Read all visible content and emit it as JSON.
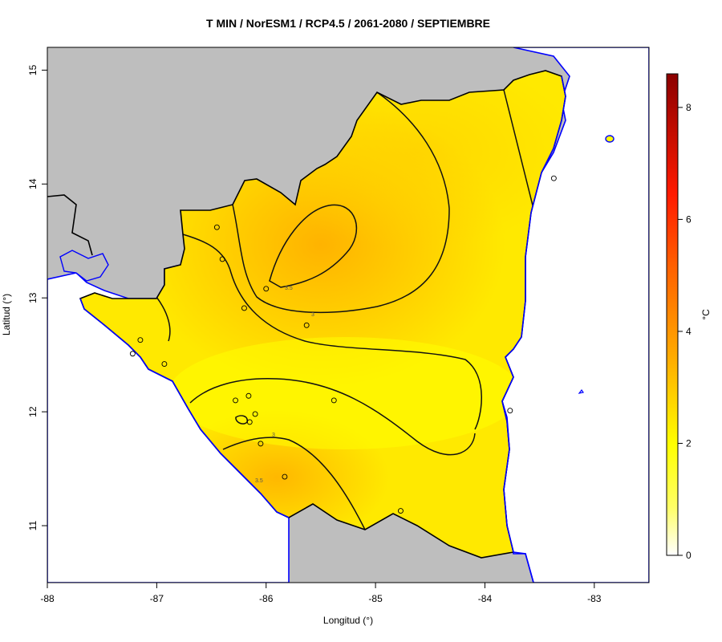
{
  "title": "T MIN / NorESM1 / RCP4.5 / 2061-2080 / SEPTIEMBRE",
  "xlabel": "Longitud (°)",
  "ylabel": "Latitud (°)",
  "unit": "°C",
  "colors": {
    "land_background": "#bebebe",
    "coastline": "#0000ff",
    "border": "#000000",
    "scale_low": "#ffffff",
    "scale_mid": "#ffff00",
    "scale_high": "#8b0000"
  },
  "chart_data": {
    "type": "heatmap",
    "xlim": [
      -88,
      -82.5
    ],
    "ylim": [
      10.5,
      15.2
    ],
    "x_ticks": [
      "-88",
      "-87",
      "-86",
      "-85",
      "-84",
      "-83"
    ],
    "y_ticks": [
      "11",
      "12",
      "13",
      "14",
      "15"
    ],
    "colorbar": {
      "min": 0,
      "max": 8.6,
      "ticks": [
        "0",
        "2",
        "4",
        "6",
        "8"
      ]
    },
    "contour_labels": [
      "3.5",
      "3",
      "3",
      "3.5"
    ],
    "stations": [
      {
        "lon": -86.45,
        "lat": 13.62
      },
      {
        "lon": -86.4,
        "lat": 13.34
      },
      {
        "lon": -86.0,
        "lat": 13.08
      },
      {
        "lon": -86.2,
        "lat": 12.91
      },
      {
        "lon": -85.63,
        "lat": 12.76
      },
      {
        "lon": -87.15,
        "lat": 12.63
      },
      {
        "lon": -87.22,
        "lat": 12.51
      },
      {
        "lon": -86.93,
        "lat": 12.42
      },
      {
        "lon": -86.28,
        "lat": 12.1
      },
      {
        "lon": -86.16,
        "lat": 12.14
      },
      {
        "lon": -86.1,
        "lat": 11.98
      },
      {
        "lon": -86.15,
        "lat": 11.91
      },
      {
        "lon": -86.05,
        "lat": 11.72
      },
      {
        "lon": -85.83,
        "lat": 11.43
      },
      {
        "lon": -85.38,
        "lat": 12.1
      },
      {
        "lon": -84.77,
        "lat": 11.13
      },
      {
        "lon": -83.77,
        "lat": 12.01
      },
      {
        "lon": -83.37,
        "lat": 14.05
      }
    ]
  }
}
